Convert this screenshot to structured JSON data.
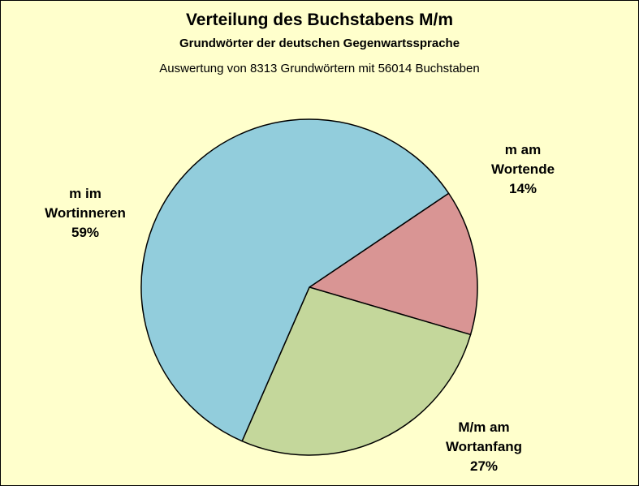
{
  "chart_data": {
    "type": "pie",
    "title": "Verteilung des Buchstabens M/m",
    "subtitle": "Grundwörter der deutschen Gegenwartssprache",
    "caption": "Auswertung von 8313 Grundwörtern mit 56014 Buchstaben",
    "background_color": "#ffffcc",
    "slices": [
      {
        "label_line1": "m am",
        "label_line2": "Wortende",
        "value": 14,
        "value_label": "14%",
        "color": "#d99594"
      },
      {
        "label_line1": "M/m am",
        "label_line2": "Wortanfang",
        "value": 27,
        "value_label": "27%",
        "color": "#c4d79b"
      },
      {
        "label_line1": "m im",
        "label_line2": "Wortinneren",
        "value": 59,
        "value_label": "59%",
        "color": "#92cddc"
      }
    ]
  }
}
